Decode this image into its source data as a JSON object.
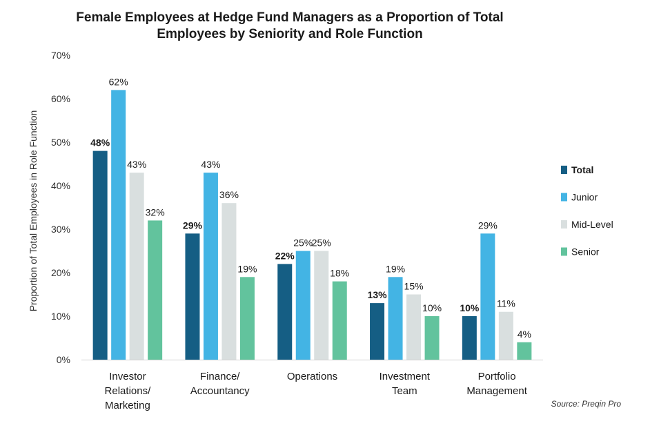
{
  "chart_data": {
    "type": "bar",
    "title": "Female Employees at Hedge Fund Managers as a Proportion of Total Employees by Seniority and Role Function",
    "title_lines": [
      "Female Employees at Hedge Fund Managers as a Proportion of Total",
      "Employees by Seniority and Role Function"
    ],
    "xlabel": "",
    "ylabel": "Proportion of Total Employees in Role Function",
    "ylim": [
      0,
      70
    ],
    "yticks": [
      0,
      10,
      20,
      30,
      40,
      50,
      60,
      70
    ],
    "ytick_suffix": "%",
    "value_suffix": "%",
    "grid": false,
    "legend_position": "right",
    "categories": [
      [
        "Investor",
        "Relations/",
        "Marketing"
      ],
      [
        "Finance/",
        "Accountancy"
      ],
      [
        "Operations"
      ],
      [
        "Investment",
        "Team"
      ],
      [
        "Portfolio",
        "Management"
      ]
    ],
    "series": [
      {
        "name": "Total",
        "color": "#155e84",
        "bold": true,
        "values": [
          48,
          29,
          22,
          13,
          10
        ]
      },
      {
        "name": "Junior",
        "color": "#43b4e4",
        "bold": false,
        "values": [
          62,
          43,
          25,
          19,
          29
        ]
      },
      {
        "name": "Mid-Level",
        "color": "#d9dfdf",
        "bold": false,
        "values": [
          43,
          36,
          25,
          15,
          11
        ]
      },
      {
        "name": "Senior",
        "color": "#62c39d",
        "bold": false,
        "values": [
          32,
          19,
          18,
          10,
          4
        ]
      }
    ],
    "source": "Source: Preqin Pro"
  }
}
